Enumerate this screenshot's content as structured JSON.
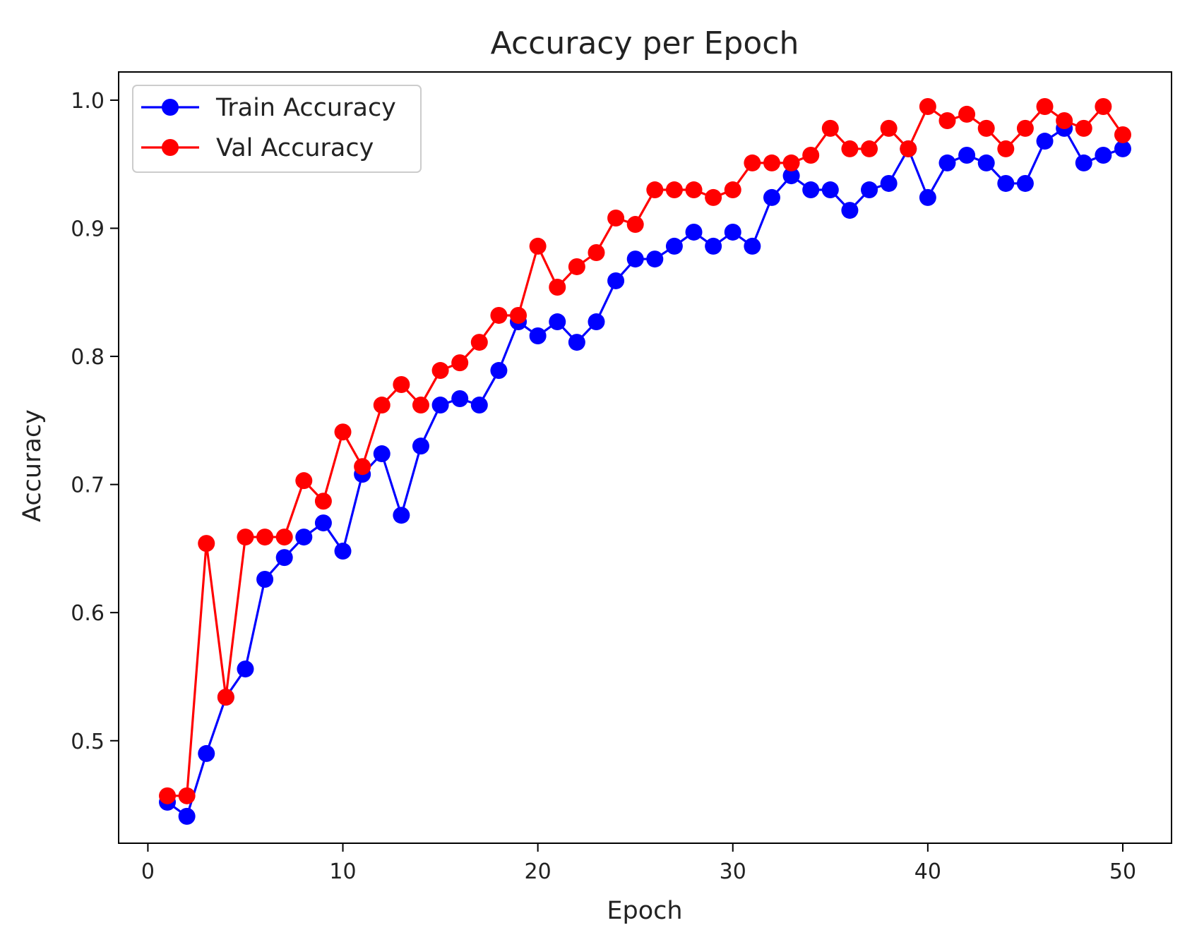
{
  "chart_data": {
    "type": "line",
    "title": "Accuracy per Epoch",
    "xlabel": "Epoch",
    "ylabel": "Accuracy",
    "xlim": [
      -1.5,
      52.5
    ],
    "ylim": [
      0.42,
      1.022
    ],
    "xticks": [
      0,
      10,
      20,
      30,
      40,
      50
    ],
    "yticks": [
      0.5,
      0.6,
      0.7,
      0.8,
      0.9,
      1.0
    ],
    "xtick_labels": [
      "0",
      "10",
      "20",
      "30",
      "40",
      "50"
    ],
    "ytick_labels": [
      "0.5",
      "0.6",
      "0.7",
      "0.8",
      "0.9",
      "1.0"
    ],
    "grid": false,
    "legend_position": "top-left",
    "x": [
      1,
      2,
      3,
      4,
      5,
      6,
      7,
      8,
      9,
      10,
      11,
      12,
      13,
      14,
      15,
      16,
      17,
      18,
      19,
      20,
      21,
      22,
      23,
      24,
      25,
      26,
      27,
      28,
      29,
      30,
      31,
      32,
      33,
      34,
      35,
      36,
      37,
      38,
      39,
      40,
      41,
      42,
      43,
      44,
      45,
      46,
      47,
      48,
      49,
      50
    ],
    "series": [
      {
        "name": "Train Accuracy",
        "color": "#0000ff",
        "values": [
          0.452,
          0.441,
          0.49,
          0.534,
          0.556,
          0.626,
          0.643,
          0.659,
          0.67,
          0.648,
          0.708,
          0.724,
          0.676,
          0.73,
          0.762,
          0.767,
          0.762,
          0.789,
          0.827,
          0.816,
          0.827,
          0.811,
          0.827,
          0.859,
          0.876,
          0.876,
          0.886,
          0.897,
          0.886,
          0.897,
          0.886,
          0.924,
          0.941,
          0.93,
          0.93,
          0.914,
          0.93,
          0.935,
          0.962,
          0.924,
          0.951,
          0.957,
          0.951,
          0.935,
          0.935,
          0.968,
          0.978,
          0.951,
          0.957,
          0.962
        ]
      },
      {
        "name": "Val Accuracy",
        "color": "#ff0000",
        "values": [
          0.457,
          0.457,
          0.654,
          0.534,
          0.659,
          0.659,
          0.659,
          0.703,
          0.687,
          0.741,
          0.714,
          0.762,
          0.778,
          0.762,
          0.789,
          0.795,
          0.811,
          0.832,
          0.832,
          0.886,
          0.854,
          0.87,
          0.881,
          0.908,
          0.903,
          0.93,
          0.93,
          0.93,
          0.924,
          0.93,
          0.951,
          0.951,
          0.951,
          0.957,
          0.978,
          0.962,
          0.962,
          0.978,
          0.962,
          0.995,
          0.984,
          0.989,
          0.978,
          0.962,
          0.978,
          0.995,
          0.984,
          0.978,
          0.995,
          0.973
        ]
      }
    ]
  }
}
